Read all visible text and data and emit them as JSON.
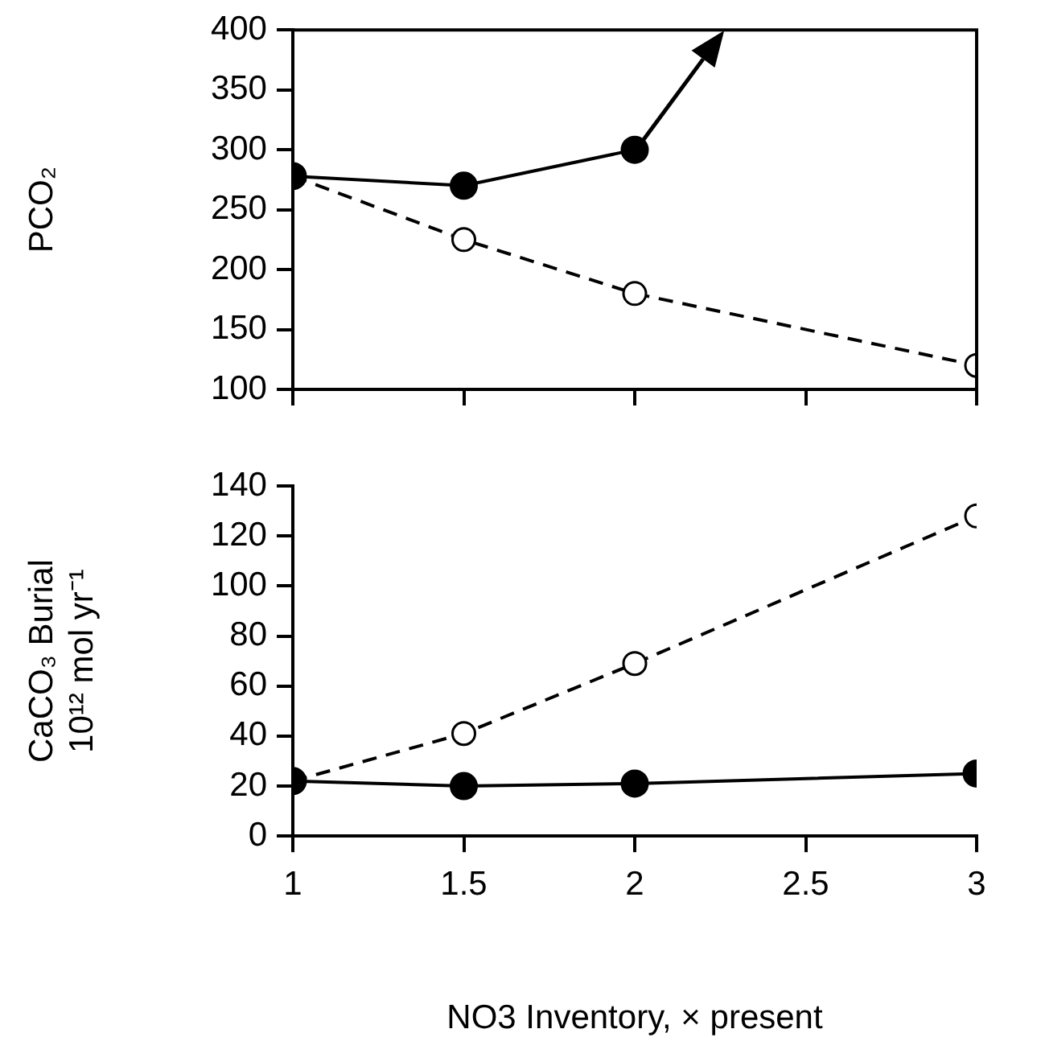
{
  "chart_data": [
    {
      "type": "line",
      "ylabel": "PCO₂",
      "xlim": [
        1,
        3
      ],
      "xticks": [
        1,
        1.5,
        2,
        2.5,
        3
      ],
      "ylim": [
        100,
        400
      ],
      "yticks": [
        100,
        150,
        200,
        250,
        300,
        350,
        400
      ],
      "tick_labels": "y",
      "grid": false,
      "legend": false,
      "marker": "circle",
      "series": [
        {
          "color": "#000000",
          "x": [
            1,
            1.5,
            2
          ],
          "values": [
            278,
            270,
            300
          ],
          "line_style": "solid"
        },
        {
          "color": "#000000",
          "x": [
            1,
            1.5,
            2,
            3
          ],
          "values": [
            278,
            225,
            180,
            120
          ],
          "line_style": "dashed"
        }
      ]
    },
    {
      "type": "line",
      "ylabel": "CaCO₃ Burial\n10¹² mol yr⁻¹",
      "xlabel": "NO3 Inventory, × present",
      "xlim": [
        1,
        3
      ],
      "xticks": [
        1,
        1.5,
        2,
        2.5,
        3
      ],
      "ylim": [
        0,
        140
      ],
      "yticks": [
        0,
        20,
        40,
        60,
        80,
        100,
        120,
        140
      ],
      "grid": false,
      "legend": false,
      "marker": "circle",
      "series": [
        {
          "color": "#000000",
          "x": [
            1,
            1.5,
            2,
            3
          ],
          "values": [
            22,
            20,
            21,
            25
          ],
          "line_style": "solid"
        },
        {
          "color": "#000000",
          "x": [
            1,
            1.5,
            2,
            3
          ],
          "values": [
            22,
            41,
            69,
            128
          ],
          "line_style": "dashed"
        }
      ]
    }
  ]
}
